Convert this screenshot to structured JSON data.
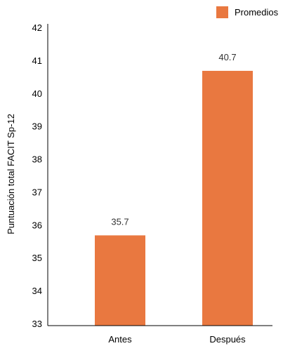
{
  "chart_data": {
    "type": "bar",
    "categories": [
      "Antes",
      "Después"
    ],
    "series": [
      {
        "name": "Promedios",
        "values": [
          35.7,
          40.7
        ],
        "color": "#e97840"
      }
    ],
    "data_labels": [
      "35.7",
      "40.7"
    ],
    "xlabel": "",
    "ylabel": "Puntuación total FACIT Sp-12",
    "ylim": [
      33,
      42
    ],
    "yticks": [
      33,
      34,
      35,
      36,
      37,
      38,
      39,
      40,
      41,
      42
    ],
    "grid": false,
    "legend_position": "top-right"
  }
}
